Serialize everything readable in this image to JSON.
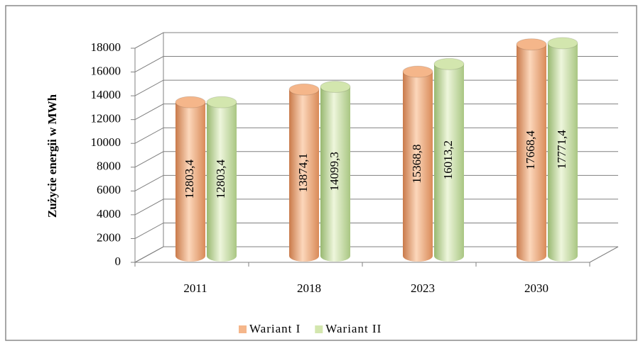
{
  "chart_data": {
    "type": "cylinder-bar",
    "y_label": "Zużycie energii w MWh",
    "categories": [
      "2011",
      "2018",
      "2023",
      "2030"
    ],
    "series": [
      {
        "name": "Wariant I",
        "color": "#f5b68a",
        "values": [
          12803.4,
          13874.1,
          15368.8,
          17668.4
        ],
        "value_labels": [
          "12803,4",
          "13874,1",
          "15368,8",
          "17668,4"
        ]
      },
      {
        "name": "Wariant II",
        "color": "#d3e6ae",
        "values": [
          12803.4,
          14099.3,
          16013.2,
          17771.4
        ],
        "value_labels": [
          "12803,4",
          "14099,3",
          "16013,2",
          "17771,4"
        ]
      }
    ],
    "ylim": [
      0,
      18000
    ],
    "yticks": [
      0,
      2000,
      4000,
      6000,
      8000,
      10000,
      12000,
      14000,
      16000,
      18000
    ],
    "grid": true,
    "legend": "bottom"
  }
}
